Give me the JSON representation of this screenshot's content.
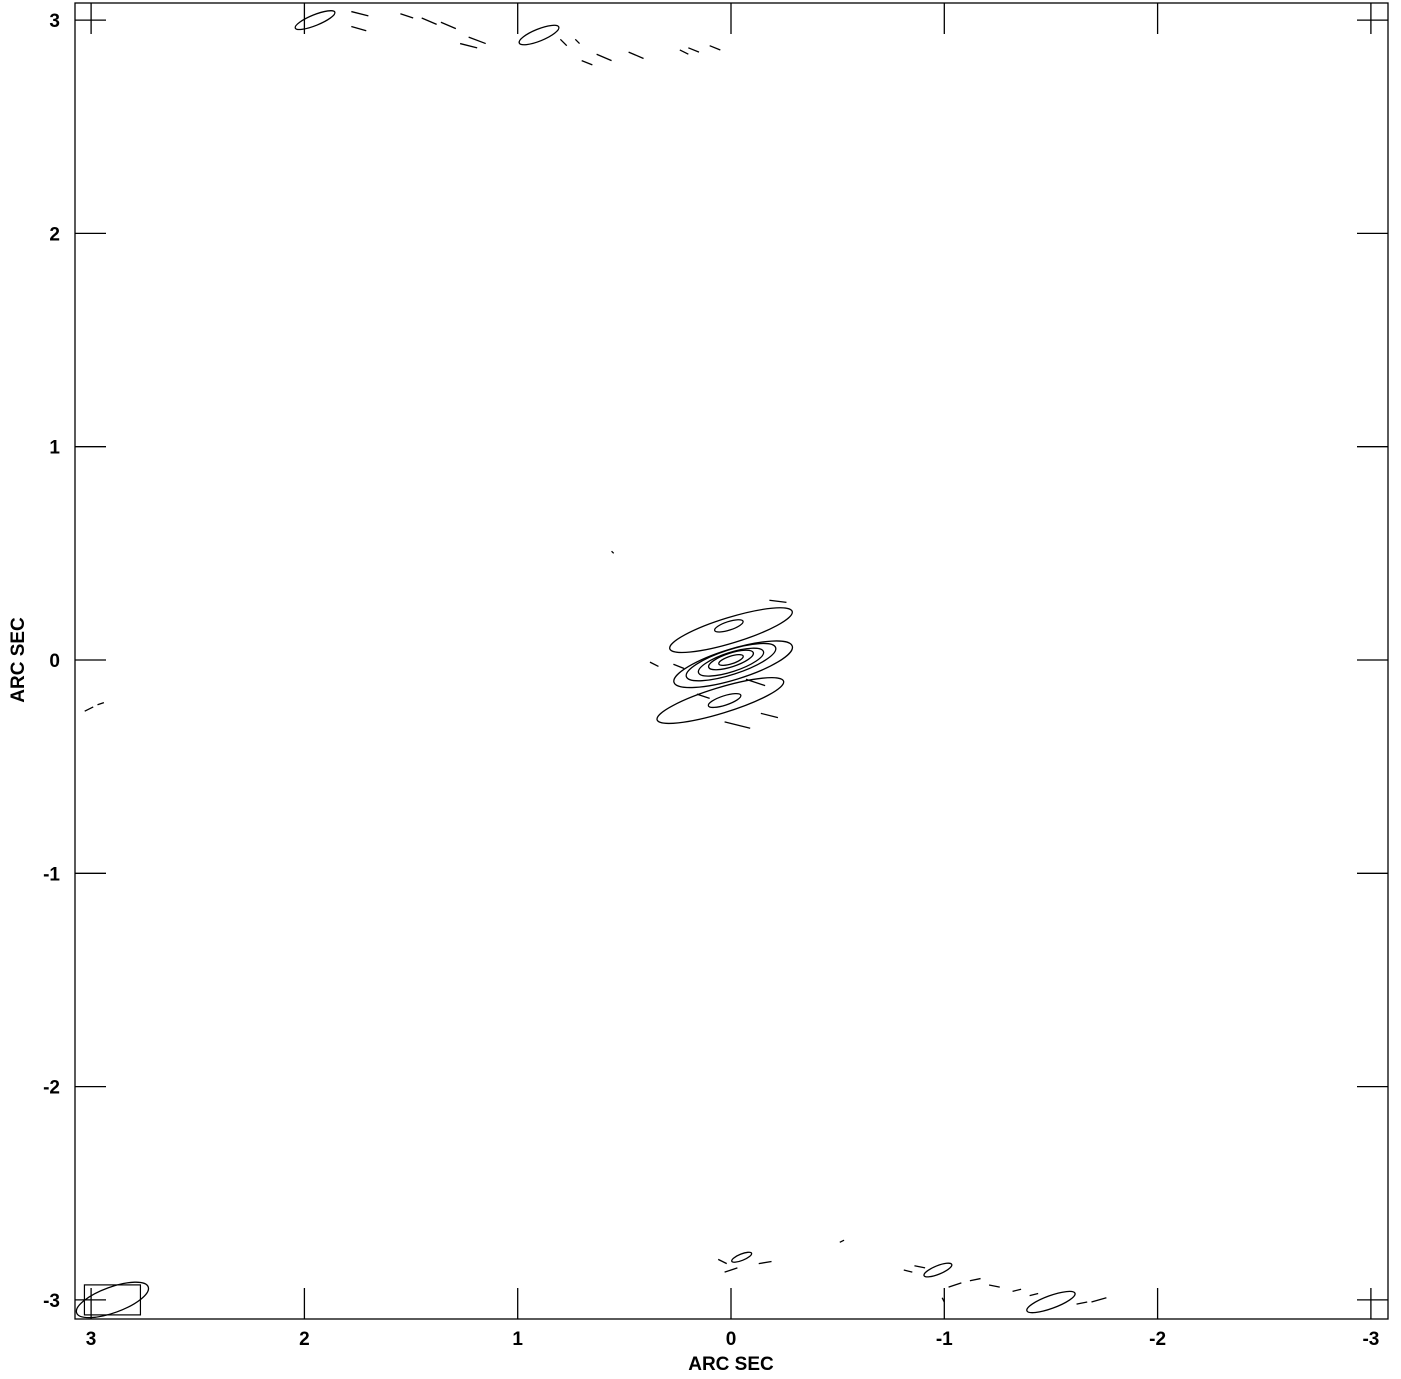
{
  "chart_data": {
    "type": "contour",
    "xlabel": "ARC SEC",
    "ylabel": "ARC SEC",
    "x_axis_reversed": true,
    "xlim": [
      3.05,
      -3.05
    ],
    "ylim": [
      -3.05,
      3.05
    ],
    "x_ticks": [
      3,
      2,
      1,
      0,
      -1,
      -2,
      -3
    ],
    "x_tick_labels": [
      "3",
      "2",
      "1",
      "0",
      "-1",
      "-2",
      "-3"
    ],
    "y_ticks": [
      3,
      2,
      1,
      0,
      -1,
      -2,
      -3
    ],
    "y_tick_labels": [
      "3",
      "2",
      "1",
      "0",
      "-1",
      "-2",
      "-3"
    ],
    "grid": false,
    "beam": {
      "x": 2.9,
      "y": -3.0,
      "major": 0.21,
      "minor": 0.06,
      "pa_deg": 70
    },
    "contours": [
      {
        "x": 0.0,
        "y": 0.0,
        "major": 0.06,
        "minor": 0.018,
        "pa_deg": 72
      },
      {
        "x": 0.0,
        "y": 0.0,
        "major": 0.11,
        "minor": 0.032,
        "pa_deg": 72
      },
      {
        "x": 0.0,
        "y": -0.01,
        "major": 0.16,
        "minor": 0.045,
        "pa_deg": 72
      },
      {
        "x": 0.0,
        "y": -0.01,
        "major": 0.22,
        "minor": 0.058,
        "pa_deg": 72
      },
      {
        "x": -0.01,
        "y": -0.02,
        "major": 0.29,
        "minor": 0.072,
        "pa_deg": 73
      },
      {
        "x": 0.01,
        "y": 0.16,
        "major": 0.07,
        "minor": 0.02,
        "pa_deg": 72
      },
      {
        "x": 0.0,
        "y": 0.14,
        "major": 0.3,
        "minor": 0.06,
        "pa_deg": 73
      },
      {
        "x": 0.03,
        "y": -0.19,
        "major": 0.08,
        "minor": 0.022,
        "pa_deg": 72
      },
      {
        "x": 0.05,
        "y": -0.19,
        "major": 0.31,
        "minor": 0.06,
        "pa_deg": 73
      },
      {
        "x": 0.9,
        "y": 2.93,
        "major": 0.1,
        "minor": 0.028,
        "pa_deg": 68
      },
      {
        "x": 1.95,
        "y": 3.0,
        "major": 0.1,
        "minor": 0.025,
        "pa_deg": 68
      },
      {
        "x": -1.5,
        "y": -3.01,
        "major": 0.12,
        "minor": 0.03,
        "pa_deg": 70
      },
      {
        "x": -0.97,
        "y": -2.86,
        "major": 0.07,
        "minor": 0.02,
        "pa_deg": 68
      },
      {
        "x": -0.05,
        "y": -2.8,
        "major": 0.05,
        "minor": 0.015,
        "pa_deg": 68
      }
    ],
    "fragments": [
      [
        1.78,
        3.04,
        1.7,
        3.02
      ],
      [
        1.55,
        3.03,
        1.49,
        3.01
      ],
      [
        1.45,
        3.01,
        1.38,
        2.98
      ],
      [
        1.36,
        2.99,
        1.29,
        2.96
      ],
      [
        1.23,
        2.92,
        1.15,
        2.89
      ],
      [
        1.27,
        2.89,
        1.19,
        2.87
      ],
      [
        1.78,
        2.97,
        1.71,
        2.95
      ],
      [
        0.8,
        2.91,
        0.77,
        2.88
      ],
      [
        0.73,
        2.91,
        0.71,
        2.89
      ],
      [
        0.63,
        2.84,
        0.56,
        2.81
      ],
      [
        0.7,
        2.81,
        0.65,
        2.79
      ],
      [
        0.48,
        2.85,
        0.41,
        2.82
      ],
      [
        0.24,
        2.86,
        0.2,
        2.84
      ],
      [
        0.2,
        2.87,
        0.15,
        2.85
      ],
      [
        0.1,
        2.88,
        0.05,
        2.86
      ],
      [
        0.56,
        0.51,
        0.55,
        0.5
      ],
      [
        0.38,
        -0.01,
        0.34,
        -0.03
      ],
      [
        -0.18,
        0.28,
        -0.26,
        0.27
      ],
      [
        -0.07,
        -0.09,
        -0.16,
        -0.12
      ],
      [
        0.16,
        -0.16,
        0.1,
        -0.18
      ],
      [
        -0.14,
        -0.25,
        -0.22,
        -0.27
      ],
      [
        0.03,
        -0.29,
        -0.09,
        -0.32
      ],
      [
        0.27,
        -0.02,
        0.22,
        -0.04
      ],
      [
        3.03,
        -0.24,
        2.99,
        -0.22
      ],
      [
        2.97,
        -0.21,
        2.94,
        -0.2
      ],
      [
        0.03,
        -2.87,
        -0.03,
        -2.85
      ],
      [
        -0.13,
        -2.83,
        -0.19,
        -2.82
      ],
      [
        -0.51,
        -2.73,
        -0.53,
        -2.72
      ],
      [
        -0.85,
        -2.87,
        -0.81,
        -2.86
      ],
      [
        -0.91,
        -2.85,
        -0.86,
        -2.84
      ],
      [
        -1.02,
        -2.94,
        -1.08,
        -2.92
      ],
      [
        -1.12,
        -2.91,
        -1.17,
        -2.9
      ],
      [
        -1.21,
        -2.93,
        -1.26,
        -2.94
      ],
      [
        -1.32,
        -2.96,
        -1.36,
        -2.95
      ],
      [
        -1.4,
        -2.98,
        -1.44,
        -2.97
      ],
      [
        -1.62,
        -3.02,
        -1.67,
        -3.01
      ],
      [
        -1.69,
        -3.01,
        -1.76,
        -2.99
      ],
      [
        -0.99,
        -2.99,
        -1.0,
        -3.01
      ],
      [
        0.06,
        -2.81,
        0.02,
        -2.83
      ]
    ]
  }
}
